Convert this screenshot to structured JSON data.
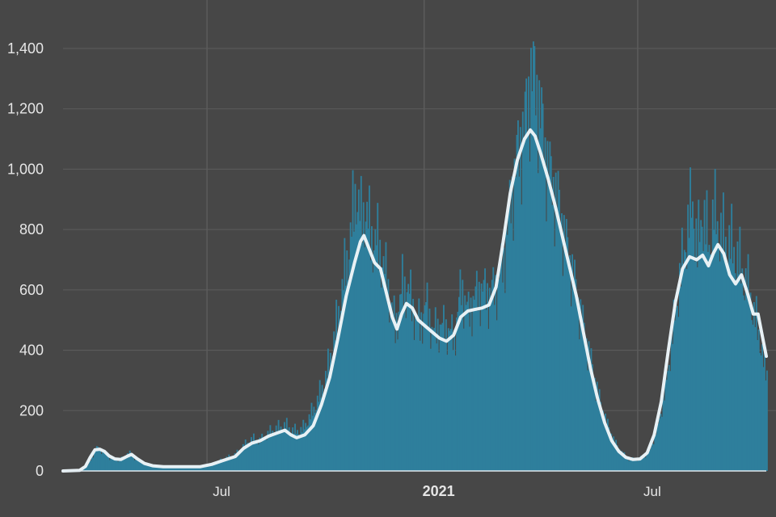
{
  "chart_data": {
    "type": "bar",
    "title": "",
    "xlabel": "",
    "ylabel": "",
    "ylim": [
      0,
      1400
    ],
    "xlim": [
      "2020-03-01",
      "2021-10-18"
    ],
    "yticks": [
      {
        "value": 0,
        "label": "0"
      },
      {
        "value": 200,
        "label": "200"
      },
      {
        "value": 400,
        "label": "400"
      },
      {
        "value": 600,
        "label": "600"
      },
      {
        "value": 800,
        "label": "800"
      },
      {
        "value": 1000,
        "label": "1,000"
      },
      {
        "value": 1200,
        "label": "1,200"
      },
      {
        "value": 1400,
        "label": "1,400"
      }
    ],
    "xticks": [
      {
        "date": "2020-07-01",
        "label": "Jul",
        "bold": false
      },
      {
        "date": "2021-01-01",
        "label": "2021",
        "bold": true
      },
      {
        "date": "2021-07-01",
        "label": "Jul",
        "bold": false
      }
    ],
    "grid": true,
    "legend": "none",
    "colors": {
      "background": "#474747",
      "bars": "#2e7f9c",
      "line": "#e8f1f5",
      "grid": "#5c5c5c",
      "axis": "#dfe9ee"
    },
    "series": [
      {
        "kind": "bars",
        "values": [
          [
            "2020-03-01",
            0
          ],
          [
            "2020-03-15",
            3
          ],
          [
            "2020-03-22",
            20
          ],
          [
            "2020-03-26",
            55
          ],
          [
            "2020-03-29",
            75
          ],
          [
            "2020-04-02",
            70
          ],
          [
            "2020-04-06",
            55
          ],
          [
            "2020-04-10",
            42
          ],
          [
            "2020-04-16",
            38
          ],
          [
            "2020-04-21",
            45
          ],
          [
            "2020-04-26",
            60
          ],
          [
            "2020-05-01",
            40
          ],
          [
            "2020-05-08",
            25
          ],
          [
            "2020-05-16",
            15
          ],
          [
            "2020-05-28",
            12
          ],
          [
            "2020-06-15",
            12
          ],
          [
            "2020-06-25",
            14
          ],
          [
            "2020-07-05",
            22
          ],
          [
            "2020-07-15",
            40
          ],
          [
            "2020-07-25",
            55
          ],
          [
            "2020-08-01",
            85
          ],
          [
            "2020-08-08",
            105
          ],
          [
            "2020-08-15",
            100
          ],
          [
            "2020-08-22",
            125
          ],
          [
            "2020-08-29",
            140
          ],
          [
            "2020-09-05",
            150
          ],
          [
            "2020-09-12",
            130
          ],
          [
            "2020-09-19",
            135
          ],
          [
            "2020-09-26",
            180
          ],
          [
            "2020-10-03",
            240
          ],
          [
            "2020-10-10",
            320
          ],
          [
            "2020-10-17",
            450
          ],
          [
            "2020-10-24",
            620
          ],
          [
            "2020-10-31",
            800
          ],
          [
            "2020-11-04",
            940
          ],
          [
            "2020-11-08",
            820
          ],
          [
            "2020-11-12",
            870
          ],
          [
            "2020-11-16",
            770
          ],
          [
            "2020-11-21",
            760
          ],
          [
            "2020-11-26",
            700
          ],
          [
            "2020-12-02",
            580
          ],
          [
            "2020-12-07",
            470
          ],
          [
            "2020-12-13",
            610
          ],
          [
            "2020-12-18",
            600
          ],
          [
            "2020-12-23",
            520
          ],
          [
            "2020-12-28",
            480
          ],
          [
            "2021-01-02",
            550
          ],
          [
            "2021-01-08",
            460
          ],
          [
            "2021-01-14",
            480
          ],
          [
            "2021-01-20",
            470
          ],
          [
            "2021-01-26",
            440
          ],
          [
            "2021-02-01",
            610
          ],
          [
            "2021-02-07",
            520
          ],
          [
            "2021-02-13",
            580
          ],
          [
            "2021-02-19",
            600
          ],
          [
            "2021-02-25",
            580
          ],
          [
            "2021-03-03",
            620
          ],
          [
            "2021-03-09",
            700
          ],
          [
            "2021-03-15",
            900
          ],
          [
            "2021-03-21",
            1050
          ],
          [
            "2021-03-27",
            1150
          ],
          [
            "2021-04-01",
            1310
          ],
          [
            "2021-04-05",
            1280
          ],
          [
            "2021-04-09",
            1180
          ],
          [
            "2021-04-14",
            1030
          ],
          [
            "2021-04-19",
            950
          ],
          [
            "2021-04-24",
            890
          ],
          [
            "2021-04-30",
            760
          ],
          [
            "2021-05-06",
            660
          ],
          [
            "2021-05-12",
            540
          ],
          [
            "2021-05-18",
            430
          ],
          [
            "2021-05-24",
            320
          ],
          [
            "2021-05-30",
            220
          ],
          [
            "2021-06-05",
            150
          ],
          [
            "2021-06-11",
            95
          ],
          [
            "2021-06-17",
            60
          ],
          [
            "2021-06-23",
            40
          ],
          [
            "2021-06-29",
            38
          ],
          [
            "2021-07-05",
            45
          ],
          [
            "2021-07-11",
            70
          ],
          [
            "2021-07-17",
            140
          ],
          [
            "2021-07-23",
            250
          ],
          [
            "2021-07-29",
            420
          ],
          [
            "2021-08-04",
            600
          ],
          [
            "2021-08-10",
            760
          ],
          [
            "2021-08-16",
            890
          ],
          [
            "2021-08-20",
            720
          ],
          [
            "2021-08-24",
            860
          ],
          [
            "2021-08-30",
            740
          ],
          [
            "2021-09-03",
            850
          ],
          [
            "2021-09-08",
            790
          ],
          [
            "2021-09-13",
            760
          ],
          [
            "2021-09-18",
            740
          ],
          [
            "2021-09-23",
            700
          ],
          [
            "2021-09-28",
            640
          ],
          [
            "2021-10-03",
            590
          ],
          [
            "2021-10-08",
            500
          ],
          [
            "2021-10-13",
            420
          ],
          [
            "2021-10-16",
            330
          ],
          [
            "2021-10-18",
            320
          ]
        ]
      },
      {
        "kind": "line",
        "name": "",
        "values": [
          [
            "2020-03-01",
            0
          ],
          [
            "2020-03-15",
            2
          ],
          [
            "2020-03-20",
            15
          ],
          [
            "2020-03-24",
            45
          ],
          [
            "2020-03-28",
            70
          ],
          [
            "2020-04-01",
            72
          ],
          [
            "2020-04-05",
            65
          ],
          [
            "2020-04-09",
            50
          ],
          [
            "2020-04-14",
            40
          ],
          [
            "2020-04-19",
            38
          ],
          [
            "2020-04-24",
            48
          ],
          [
            "2020-04-28",
            55
          ],
          [
            "2020-05-03",
            40
          ],
          [
            "2020-05-09",
            25
          ],
          [
            "2020-05-16",
            17
          ],
          [
            "2020-05-25",
            14
          ],
          [
            "2020-06-10",
            14
          ],
          [
            "2020-06-25",
            14
          ],
          [
            "2020-07-05",
            22
          ],
          [
            "2020-07-15",
            35
          ],
          [
            "2020-07-25",
            48
          ],
          [
            "2020-08-01",
            75
          ],
          [
            "2020-08-08",
            92
          ],
          [
            "2020-08-15",
            100
          ],
          [
            "2020-08-22",
            115
          ],
          [
            "2020-08-29",
            125
          ],
          [
            "2020-09-05",
            135
          ],
          [
            "2020-09-10",
            120
          ],
          [
            "2020-09-15",
            110
          ],
          [
            "2020-09-22",
            120
          ],
          [
            "2020-09-29",
            150
          ],
          [
            "2020-10-06",
            220
          ],
          [
            "2020-10-13",
            310
          ],
          [
            "2020-10-20",
            440
          ],
          [
            "2020-10-27",
            580
          ],
          [
            "2020-11-03",
            690
          ],
          [
            "2020-11-08",
            760
          ],
          [
            "2020-11-11",
            780
          ],
          [
            "2020-11-15",
            740
          ],
          [
            "2020-11-20",
            690
          ],
          [
            "2020-11-25",
            670
          ],
          [
            "2020-11-30",
            590
          ],
          [
            "2020-12-05",
            510
          ],
          [
            "2020-12-09",
            470
          ],
          [
            "2020-12-13",
            520
          ],
          [
            "2020-12-17",
            555
          ],
          [
            "2020-12-22",
            540
          ],
          [
            "2020-12-27",
            500
          ],
          [
            "2021-01-02",
            480
          ],
          [
            "2021-01-08",
            460
          ],
          [
            "2021-01-14",
            440
          ],
          [
            "2021-01-20",
            430
          ],
          [
            "2021-01-26",
            450
          ],
          [
            "2021-02-01",
            510
          ],
          [
            "2021-02-07",
            530
          ],
          [
            "2021-02-13",
            535
          ],
          [
            "2021-02-19",
            540
          ],
          [
            "2021-02-25",
            550
          ],
          [
            "2021-03-03",
            610
          ],
          [
            "2021-03-09",
            760
          ],
          [
            "2021-03-15",
            920
          ],
          [
            "2021-03-21",
            1030
          ],
          [
            "2021-03-27",
            1100
          ],
          [
            "2021-04-01",
            1130
          ],
          [
            "2021-04-05",
            1110
          ],
          [
            "2021-04-10",
            1050
          ],
          [
            "2021-04-16",
            970
          ],
          [
            "2021-04-22",
            880
          ],
          [
            "2021-04-28",
            780
          ],
          [
            "2021-05-04",
            680
          ],
          [
            "2021-05-10",
            580
          ],
          [
            "2021-05-16",
            460
          ],
          [
            "2021-05-22",
            340
          ],
          [
            "2021-05-28",
            240
          ],
          [
            "2021-06-03",
            160
          ],
          [
            "2021-06-09",
            100
          ],
          [
            "2021-06-15",
            65
          ],
          [
            "2021-06-21",
            45
          ],
          [
            "2021-06-27",
            38
          ],
          [
            "2021-07-03",
            40
          ],
          [
            "2021-07-09",
            60
          ],
          [
            "2021-07-15",
            120
          ],
          [
            "2021-07-21",
            230
          ],
          [
            "2021-07-27",
            400
          ],
          [
            "2021-08-02",
            560
          ],
          [
            "2021-08-08",
            670
          ],
          [
            "2021-08-14",
            710
          ],
          [
            "2021-08-20",
            700
          ],
          [
            "2021-08-25",
            715
          ],
          [
            "2021-08-30",
            680
          ],
          [
            "2021-09-03",
            720
          ],
          [
            "2021-09-07",
            750
          ],
          [
            "2021-09-12",
            720
          ],
          [
            "2021-09-17",
            650
          ],
          [
            "2021-09-22",
            620
          ],
          [
            "2021-09-27",
            650
          ],
          [
            "2021-10-02",
            590
          ],
          [
            "2021-10-07",
            520
          ],
          [
            "2021-10-11",
            520
          ],
          [
            "2021-10-15",
            440
          ],
          [
            "2021-10-18",
            380
          ]
        ]
      }
    ]
  }
}
